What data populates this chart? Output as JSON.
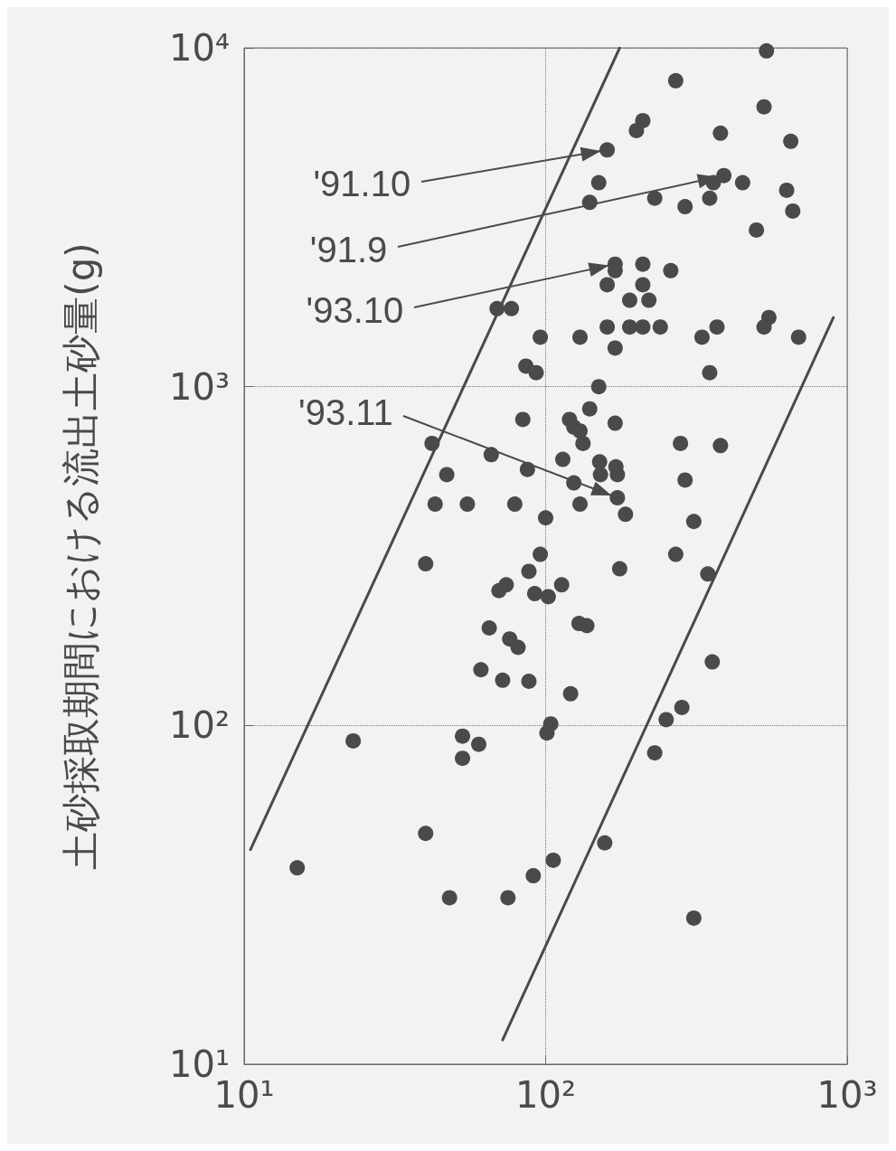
{
  "chart_data": {
    "type": "scatter",
    "ylabel": "土砂採取期間における流出土砂量(g)",
    "log": "xy",
    "grid": true,
    "marker": "circle",
    "xlim": [
      10,
      1000
    ],
    "xticks": [
      {
        "value": 10,
        "label": "10¹"
      },
      {
        "value": 100,
        "label": "10²"
      },
      {
        "value": 1000,
        "label": "10³"
      }
    ],
    "ylim": [
      10,
      10000
    ],
    "yticks": [
      {
        "value": 10,
        "label": "10¹"
      },
      {
        "value": 100,
        "label": "10²"
      },
      {
        "value": 1000,
        "label": "10³"
      },
      {
        "value": 10000,
        "label": "10⁴"
      }
    ],
    "annotations": [
      {
        "text": "'91.10",
        "x": 160,
        "y": 5000
      },
      {
        "text": "'91.9",
        "x": 390,
        "y": 4200
      },
      {
        "text": "'93.10",
        "x": 170,
        "y": 2300
      },
      {
        "text": "'93.11",
        "x": 173,
        "y": 470
      }
    ],
    "series": [
      {
        "color": "#4a4a4a",
        "x": [
          540,
          270,
          530,
          210,
          200,
          380,
          650,
          160,
          150,
          140,
          230,
          290,
          350,
          360,
          390,
          450,
          630,
          660,
          500,
          170,
          170,
          160,
          210,
          260,
          210,
          190,
          220,
          69,
          77,
          96,
          130,
          160,
          190,
          210,
          240,
          170,
          330,
          370,
          350,
          550,
          530,
          690,
          86,
          93,
          150,
          140,
          84,
          120,
          124,
          130,
          170,
          133,
          280,
          380,
          42,
          66,
          114,
          151,
          171,
          152,
          173,
          47,
          87,
          124,
          290,
          173,
          130,
          43,
          55,
          79,
          184,
          100,
          310,
          96,
          40,
          270,
          88,
          176,
          345,
          74,
          70,
          92,
          102,
          113,
          129,
          137,
          65,
          76,
          81,
          357,
          61,
          72,
          88,
          121,
          283,
          251,
          104,
          101,
          23,
          53,
          60,
          230,
          53,
          40,
          15,
          106,
          157,
          91,
          48,
          75,
          310
        ],
        "values": [
          9800,
          8000,
          6700,
          6100,
          5700,
          5600,
          5300,
          5000,
          4000,
          3500,
          3600,
          3400,
          3600,
          4000,
          4200,
          4000,
          3800,
          3300,
          2900,
          2300,
          2200,
          2000,
          2300,
          2200,
          2000,
          1800,
          1800,
          1700,
          1700,
          1400,
          1400,
          1500,
          1500,
          1500,
          1500,
          1300,
          1400,
          1500,
          1100,
          1600,
          1500,
          1400,
          1150,
          1100,
          1000,
          860,
          800,
          800,
          760,
          740,
          780,
          680,
          680,
          670,
          680,
          630,
          610,
          600,
          580,
          550,
          550,
          550,
          570,
          520,
          530,
          470,
          450,
          450,
          450,
          450,
          420,
          410,
          400,
          320,
          300,
          320,
          285,
          290,
          280,
          260,
          250,
          245,
          240,
          260,
          200,
          197,
          194,
          180,
          170,
          154,
          146,
          136,
          135,
          124,
          113,
          104,
          101,
          95,
          90,
          93,
          88,
          83,
          80,
          48,
          38,
          40,
          45,
          36,
          31,
          31,
          27
        ]
      },
      {
        "type": "line",
        "color": "#4a4a4a",
        "marker": "none",
        "x": [
          10.5,
          176
        ],
        "values": [
          43,
          10000
        ]
      },
      {
        "type": "line",
        "color": "#4a4a4a",
        "marker": "none",
        "x": [
          72,
          900
        ],
        "values": [
          11.8,
          1600
        ]
      }
    ]
  }
}
